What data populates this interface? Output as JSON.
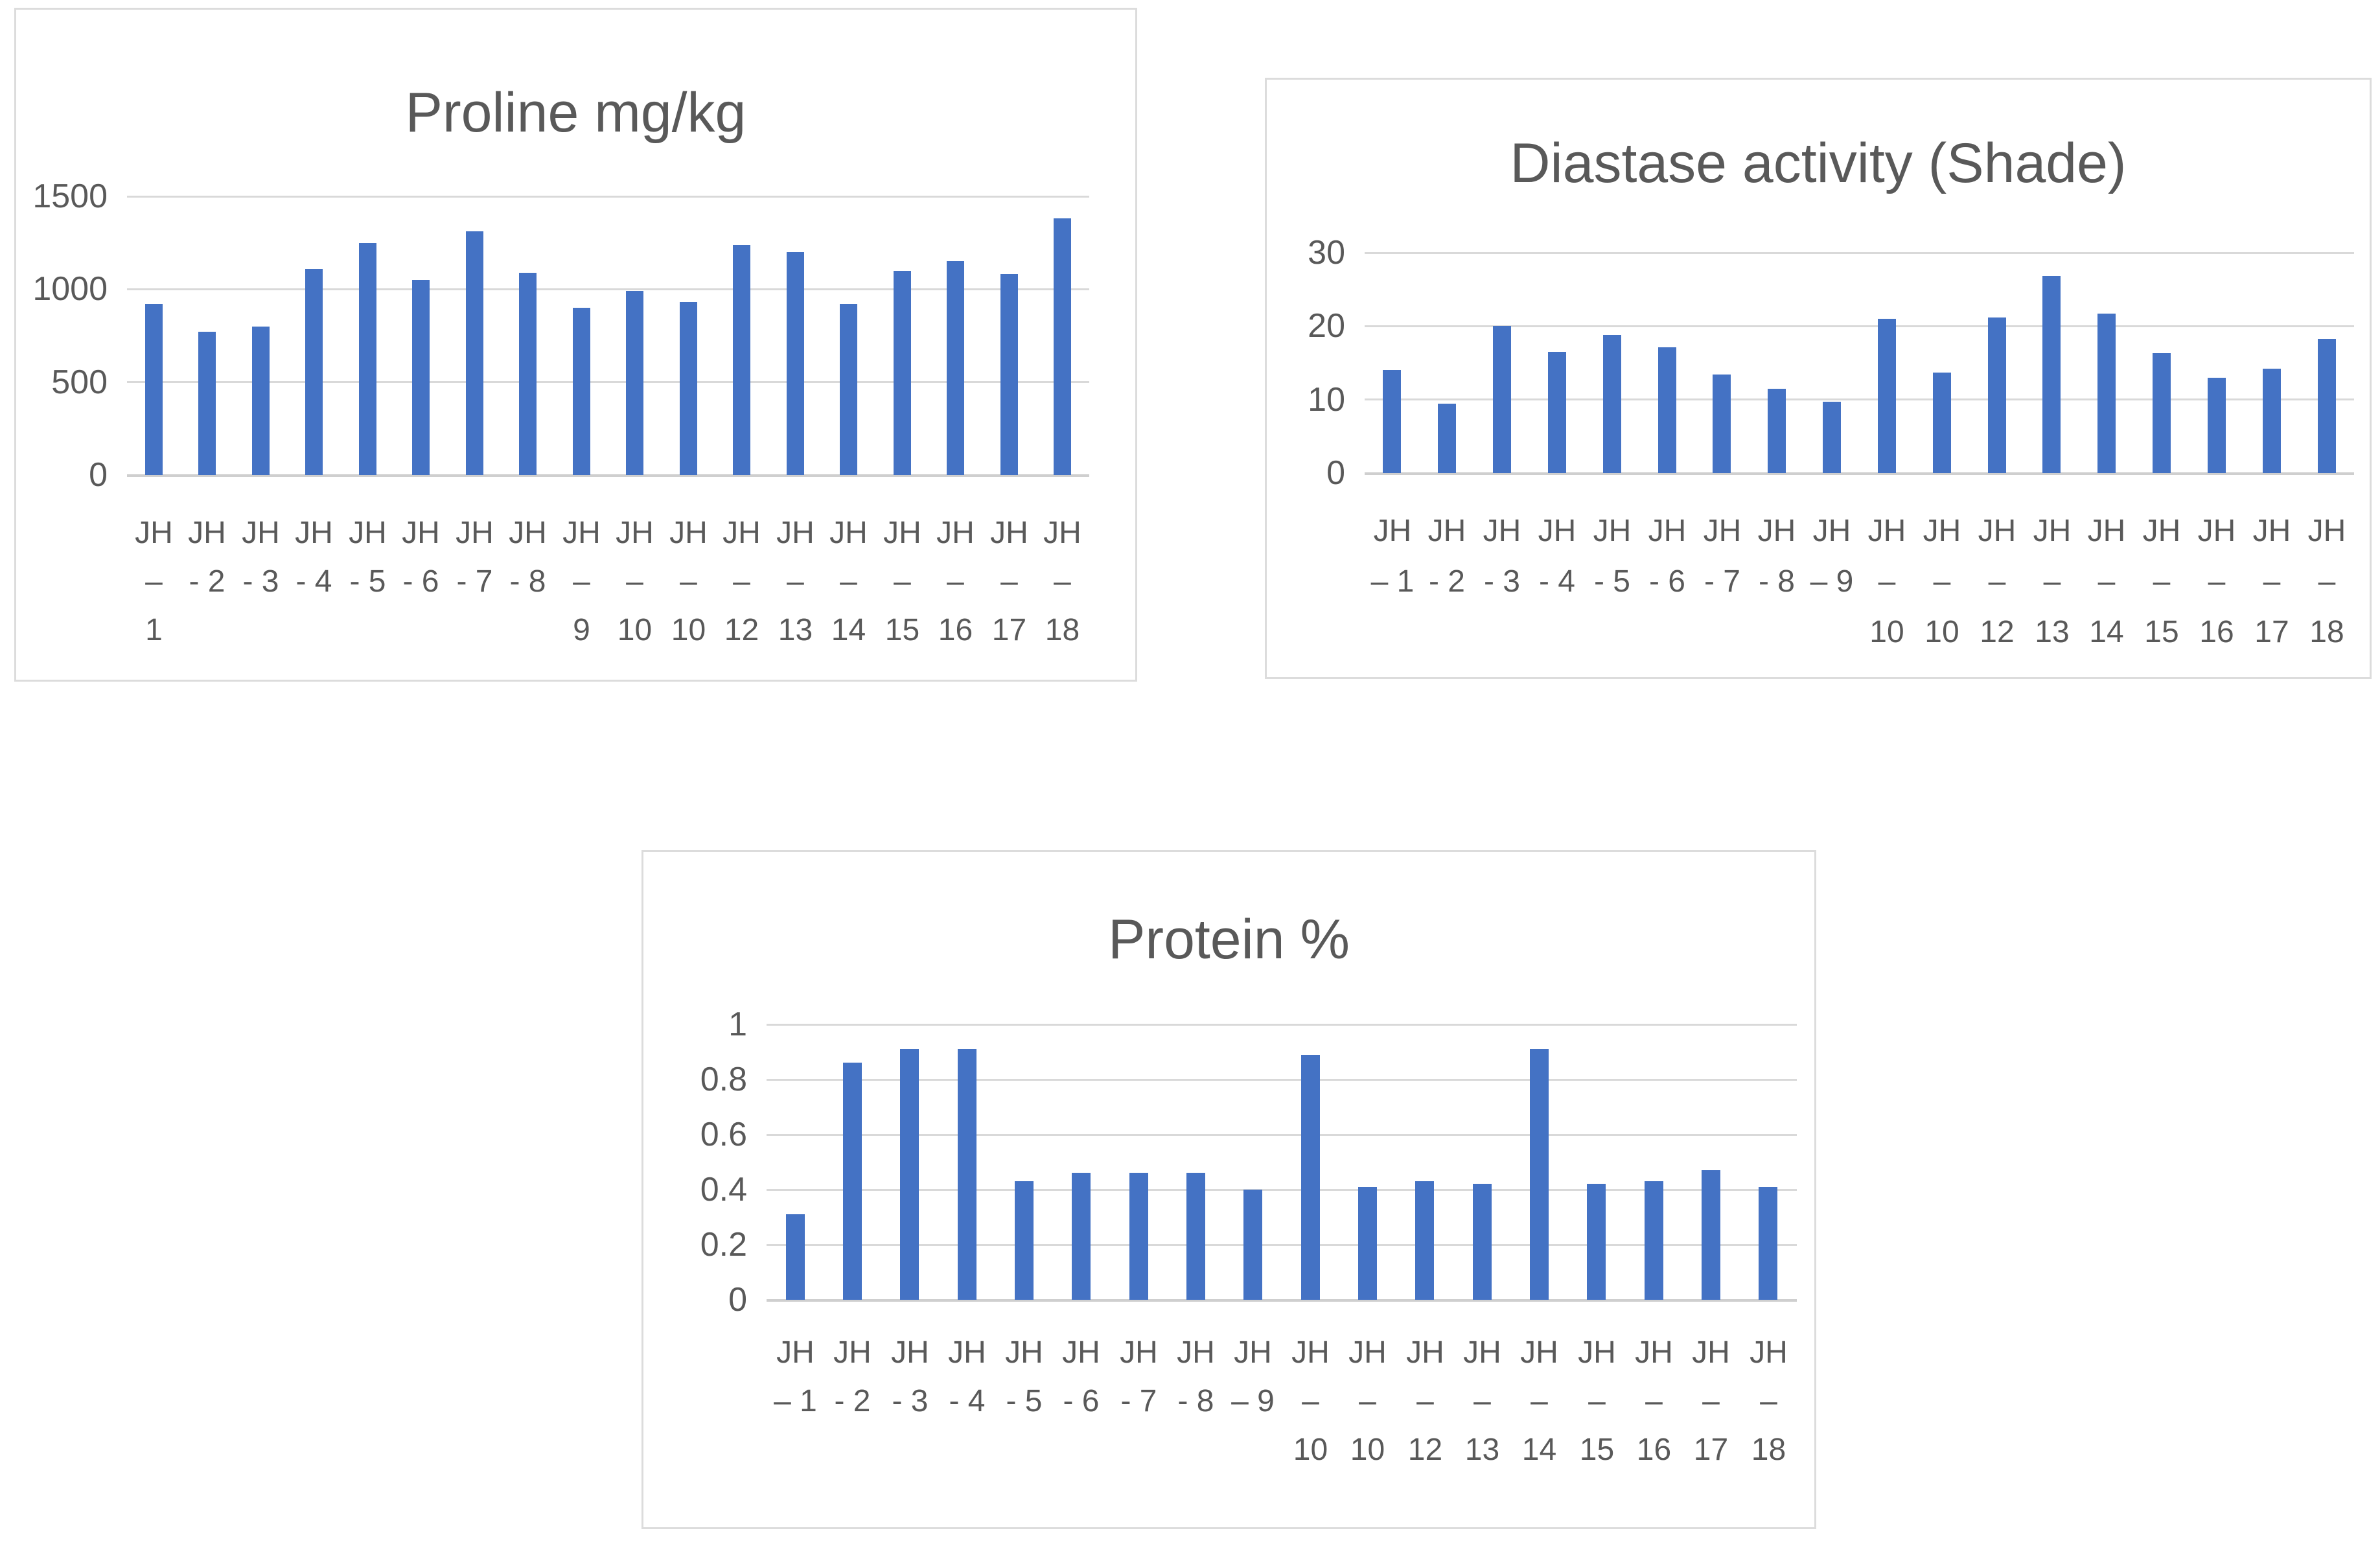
{
  "page": {
    "background": "#ffffff"
  },
  "colors": {
    "bar": "#4472C4",
    "gridline": "#D9D9D9",
    "zero_axis": "#CFCFCF",
    "axis_text": "#595959",
    "title_text": "#595959",
    "panel_border": "#DCDCDC"
  },
  "chart_data": [
    {
      "type": "bar",
      "title": "Proline mg/kg",
      "xlabel": "",
      "ylabel": "",
      "ylim": [
        0,
        1500
      ],
      "y_ticks": [
        1500,
        1000,
        500,
        0
      ],
      "grid": true,
      "legend_position": "none",
      "bar_color": "#4472C4",
      "categories": [
        "JH – 1",
        "JH - 2",
        "JH - 3",
        "JH - 4",
        "JH - 5",
        "JH - 6",
        "JH - 7",
        "JH - 8",
        "JH – 9",
        "JH – 10",
        "JH – 10",
        "JH – 12",
        "JH – 13",
        "JH – 14",
        "JH – 15",
        "JH – 16",
        "JH – 17",
        "JH – 18"
      ],
      "values": [
        920,
        770,
        800,
        1110,
        1250,
        1050,
        1310,
        1090,
        900,
        990,
        930,
        1240,
        1200,
        920,
        1100,
        1150,
        1080,
        1380
      ],
      "label_lines": [
        [
          "JH",
          "–",
          "1"
        ],
        [
          "JH",
          "- 2",
          ""
        ],
        [
          "JH",
          "- 3",
          ""
        ],
        [
          "JH",
          "- 4",
          ""
        ],
        [
          "JH",
          "- 5",
          ""
        ],
        [
          "JH",
          "- 6",
          ""
        ],
        [
          "JH",
          "- 7",
          ""
        ],
        [
          "JH",
          "- 8",
          ""
        ],
        [
          "JH",
          "–",
          "9"
        ],
        [
          "JH",
          "–",
          "10"
        ],
        [
          "JH",
          "–",
          "10"
        ],
        [
          "JH",
          "–",
          "12"
        ],
        [
          "JH",
          "–",
          "13"
        ],
        [
          "JH",
          "–",
          "14"
        ],
        [
          "JH",
          "–",
          "15"
        ],
        [
          "JH",
          "–",
          "16"
        ],
        [
          "JH",
          "–",
          "17"
        ],
        [
          "JH",
          "–",
          "18"
        ]
      ]
    },
    {
      "type": "bar",
      "title": "Diastase activity (Shade)",
      "xlabel": "",
      "ylabel": "",
      "ylim": [
        0,
        30
      ],
      "y_ticks": [
        30,
        20,
        10,
        0
      ],
      "grid": true,
      "legend_position": "none",
      "bar_color": "#4472C4",
      "categories": [
        "JH – 1",
        "JH - 2",
        "JH - 3",
        "JH - 4",
        "JH - 5",
        "JH - 6",
        "JH - 7",
        "JH - 8",
        "JH – 9",
        "JH – 10",
        "JH – 10",
        "JH – 12",
        "JH – 13",
        "JH – 14",
        "JH – 15",
        "JH – 16",
        "JH – 17",
        "JH – 18"
      ],
      "values": [
        14,
        9.4,
        20,
        16.5,
        18.8,
        17.1,
        13.4,
        11.5,
        9.7,
        21,
        13.7,
        21.2,
        26.8,
        21.7,
        16.3,
        13,
        14.2,
        18.3
      ],
      "label_lines": [
        [
          "JH",
          "– 1",
          ""
        ],
        [
          "JH",
          "- 2",
          ""
        ],
        [
          "JH",
          "- 3",
          ""
        ],
        [
          "JH",
          "- 4",
          ""
        ],
        [
          "JH",
          "- 5",
          ""
        ],
        [
          "JH",
          "- 6",
          ""
        ],
        [
          "JH",
          "- 7",
          ""
        ],
        [
          "JH",
          "- 8",
          ""
        ],
        [
          "JH",
          "– 9",
          ""
        ],
        [
          "JH",
          "–",
          "10"
        ],
        [
          "JH",
          "–",
          "10"
        ],
        [
          "JH",
          "–",
          "12"
        ],
        [
          "JH",
          "–",
          "13"
        ],
        [
          "JH",
          "–",
          "14"
        ],
        [
          "JH",
          "–",
          "15"
        ],
        [
          "JH",
          "–",
          "16"
        ],
        [
          "JH",
          "–",
          "17"
        ],
        [
          "JH",
          "–",
          "18"
        ]
      ]
    },
    {
      "type": "bar",
      "title": "Protein %",
      "xlabel": "",
      "ylabel": "",
      "ylim": [
        0,
        1
      ],
      "y_ticks": [
        1,
        0.8,
        0.6,
        0.4,
        0.2,
        0
      ],
      "grid": true,
      "legend_position": "none",
      "bar_color": "#4472C4",
      "categories": [
        "JH – 1",
        "JH - 2",
        "JH - 3",
        "JH - 4",
        "JH - 5",
        "JH - 6",
        "JH - 7",
        "JH - 8",
        "JH – 9",
        "JH – 10",
        "JH – 10",
        "JH – 12",
        "JH – 13",
        "JH – 14",
        "JH – 15",
        "JH – 16",
        "JH – 17",
        "JH – 18"
      ],
      "values": [
        0.31,
        0.86,
        0.91,
        0.91,
        0.43,
        0.46,
        0.46,
        0.46,
        0.4,
        0.89,
        0.41,
        0.43,
        0.42,
        0.91,
        0.42,
        0.43,
        0.47,
        0.41
      ],
      "label_lines": [
        [
          "JH",
          "– 1",
          ""
        ],
        [
          "JH",
          "- 2",
          ""
        ],
        [
          "JH",
          "- 3",
          ""
        ],
        [
          "JH",
          "- 4",
          ""
        ],
        [
          "JH",
          "- 5",
          ""
        ],
        [
          "JH",
          "- 6",
          ""
        ],
        [
          "JH",
          "- 7",
          ""
        ],
        [
          "JH",
          "- 8",
          ""
        ],
        [
          "JH",
          "– 9",
          ""
        ],
        [
          "JH",
          "–",
          "10"
        ],
        [
          "JH",
          "–",
          "10"
        ],
        [
          "JH",
          "–",
          "12"
        ],
        [
          "JH",
          "–",
          "13"
        ],
        [
          "JH",
          "–",
          "14"
        ],
        [
          "JH",
          "–",
          "15"
        ],
        [
          "JH",
          "–",
          "16"
        ],
        [
          "JH",
          "–",
          "17"
        ],
        [
          "JH",
          "–",
          "18"
        ]
      ]
    }
  ]
}
